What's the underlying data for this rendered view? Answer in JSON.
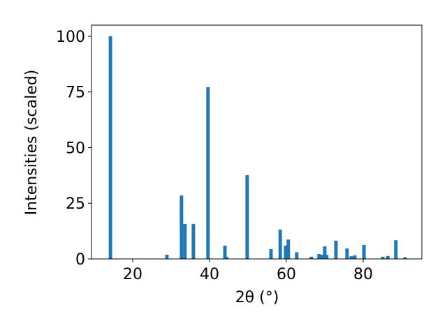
{
  "chart_data": {
    "type": "bar",
    "x": [
      14.2,
      28.9,
      32.7,
      33.6,
      35.8,
      39.6,
      44.0,
      44.4,
      49.8,
      56.0,
      58.4,
      59.8,
      60.5,
      62.7,
      66.5,
      68.5,
      69.3,
      70.0,
      70.5,
      72.9,
      75.8,
      76.9,
      77.8,
      80.2,
      85.1,
      86.4,
      88.5,
      90.9
    ],
    "values": [
      100,
      1.9,
      28.5,
      15.7,
      15.7,
      77.1,
      6,
      1,
      37.6,
      4.4,
      13.2,
      6,
      8.7,
      3,
      1,
      2.2,
      1.9,
      5.6,
      1.8,
      8.2,
      4.7,
      1.2,
      1.6,
      6.3,
      1,
      1.3,
      8.4,
      0.8
    ],
    "color": "#1f77b4",
    "xlim": [
      9.27,
      95.27
    ],
    "ylim": [
      0,
      105
    ],
    "xticks": [
      20,
      40,
      60,
      80
    ],
    "yticks": [
      0,
      25,
      50,
      75,
      100
    ],
    "xlabel": "2θ (°)",
    "ylabel": "Intensities (scaled)"
  }
}
